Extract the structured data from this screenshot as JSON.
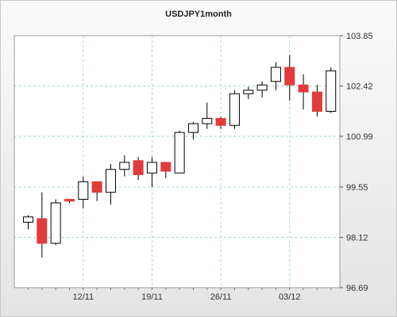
{
  "chart_data": {
    "type": "candlestick",
    "title": "USDJPY1month",
    "y_ticks": [
      "103.85",
      "102.42",
      "100.99",
      "99.55",
      "98.12",
      "96.69"
    ],
    "ylim": [
      96.69,
      103.85
    ],
    "x_tick_labels": [
      {
        "label": "12/11",
        "index": 4
      },
      {
        "label": "19/11",
        "index": 9
      },
      {
        "label": "26/11",
        "index": 14
      },
      {
        "label": "03/12",
        "index": 19
      }
    ],
    "grid": true,
    "colors": {
      "up": "#ffffff",
      "down": "#e03c3c",
      "outline": "#000000",
      "grid": "#9fd3d6"
    },
    "candles": [
      {
        "open": 98.55,
        "high": 98.75,
        "low": 98.35,
        "close": 98.7
      },
      {
        "open": 98.65,
        "high": 99.4,
        "low": 97.55,
        "close": 97.95
      },
      {
        "open": 97.95,
        "high": 99.2,
        "low": 97.9,
        "close": 99.1
      },
      {
        "open": 99.2,
        "high": 99.2,
        "low": 99.1,
        "close": 99.15
      },
      {
        "open": 99.2,
        "high": 99.85,
        "low": 98.95,
        "close": 99.7
      },
      {
        "open": 99.7,
        "high": 99.7,
        "low": 99.15,
        "close": 99.4
      },
      {
        "open": 99.4,
        "high": 100.2,
        "low": 99.05,
        "close": 100.05
      },
      {
        "open": 100.05,
        "high": 100.45,
        "low": 99.85,
        "close": 100.25
      },
      {
        "open": 100.3,
        "high": 100.4,
        "low": 99.75,
        "close": 99.9
      },
      {
        "open": 99.95,
        "high": 100.4,
        "low": 99.55,
        "close": 100.25
      },
      {
        "open": 100.25,
        "high": 100.25,
        "low": 99.8,
        "close": 100.0
      },
      {
        "open": 99.95,
        "high": 101.15,
        "low": 99.95,
        "close": 101.1
      },
      {
        "open": 101.1,
        "high": 101.4,
        "low": 100.9,
        "close": 101.35
      },
      {
        "open": 101.35,
        "high": 101.95,
        "low": 101.2,
        "close": 101.5
      },
      {
        "open": 101.5,
        "high": 101.55,
        "low": 101.2,
        "close": 101.3
      },
      {
        "open": 101.3,
        "high": 102.3,
        "low": 101.2,
        "close": 102.2
      },
      {
        "open": 102.2,
        "high": 102.4,
        "low": 102.05,
        "close": 102.3
      },
      {
        "open": 102.3,
        "high": 102.55,
        "low": 102.1,
        "close": 102.45
      },
      {
        "open": 102.55,
        "high": 103.1,
        "low": 102.3,
        "close": 102.95
      },
      {
        "open": 102.95,
        "high": 103.3,
        "low": 102.0,
        "close": 102.45
      },
      {
        "open": 102.45,
        "high": 102.75,
        "low": 101.75,
        "close": 102.25
      },
      {
        "open": 102.25,
        "high": 102.45,
        "low": 101.55,
        "close": 101.7
      },
      {
        "open": 101.7,
        "high": 102.95,
        "low": 101.65,
        "close": 102.85
      }
    ]
  }
}
